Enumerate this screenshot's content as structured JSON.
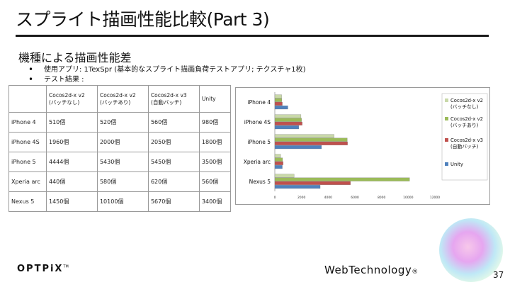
{
  "slide": {
    "title": "スプライト描画性能比較(Part 3)",
    "subhead": "機種による描画性能差",
    "bullets": [
      "使用アプリ: 1TexSpr (基本的なスプライト描画負荷テストアプリ; テクスチャ1枚)",
      "テスト結果 :"
    ],
    "page_number": "37"
  },
  "table": {
    "headers": [
      "",
      "Cocos2d-x v2\n(バッチなし)",
      "Cocos2d-x v2\n(バッチあり)",
      "Cocos2d-x v3\n(自動バッチ)",
      "Unity"
    ],
    "rows": [
      [
        "iPhone 4",
        "510個",
        "520個",
        "560個",
        "980個"
      ],
      [
        "iPhone 4S",
        "1960個",
        "2000個",
        "2050個",
        "1800個"
      ],
      [
        "iPhone 5",
        "4444個",
        "5430個",
        "5450個",
        "3500個"
      ],
      [
        "Xperia arc",
        "440個",
        "580個",
        "620個",
        "560個"
      ],
      [
        "Nexus 5",
        "1450個",
        "10100個",
        "5670個",
        "3400個"
      ]
    ]
  },
  "chart_data": {
    "type": "bar",
    "orientation": "horizontal",
    "categories": [
      "iPhone 4",
      "iPhone 4S",
      "iPhone 5",
      "Xperia arc",
      "Nexus 5"
    ],
    "series": [
      {
        "name": "Cocos2d-x v2\n(バッチなし)",
        "color": "#c9d9a9",
        "values": [
          510,
          1960,
          4444,
          440,
          1450
        ]
      },
      {
        "name": "Cocos2d-x v2\n(バッチあり)",
        "color": "#9bbb59",
        "values": [
          520,
          2000,
          5430,
          580,
          10100
        ]
      },
      {
        "name": "Cocos2d-x v3\n(自動バッチ)",
        "color": "#c0504d",
        "values": [
          560,
          2050,
          5450,
          620,
          5670
        ]
      },
      {
        "name": "Unity",
        "color": "#4f81bd",
        "values": [
          980,
          1800,
          3500,
          560,
          3400
        ]
      }
    ],
    "xticks": [
      "0",
      "2000",
      "4000",
      "6000",
      "8000",
      "10000",
      "12000"
    ],
    "xlim": [
      0,
      12000
    ],
    "legend": "right"
  },
  "logos": {
    "left": "OPTPiX",
    "left_tm": "TM",
    "right": "WebTechnology",
    "right_reg": "®"
  }
}
